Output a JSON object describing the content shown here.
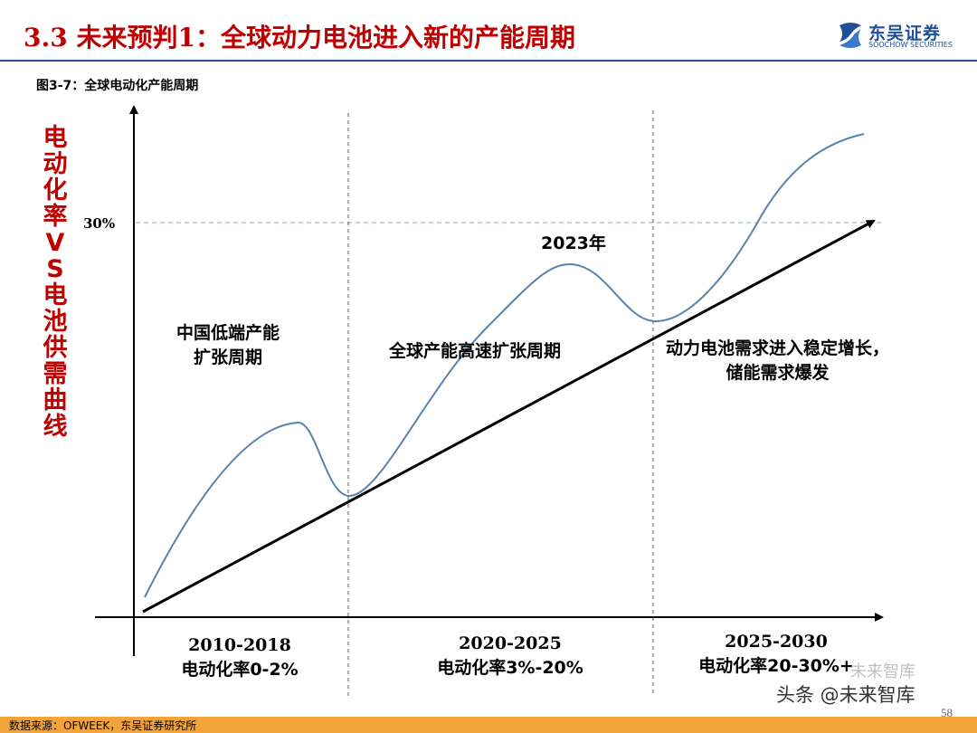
{
  "header": {
    "title": "3.3 未来预判1：全球动力电池进入新的产能周期",
    "logo_name": "东吴证券",
    "logo_sub": "SOOCHOW SECURITIES"
  },
  "figure": {
    "caption": "图3-7：全球电动化产能周期",
    "y_title": "电动化率VS电池供需曲线",
    "y_tick": "30%",
    "peak_label": "2023年",
    "phases": [
      {
        "label_lines": [
          "中国低端产能",
          "扩张周期"
        ],
        "range": "2010-2018",
        "rate": "电动化率0-2%"
      },
      {
        "label_lines": [
          "全球产能高速扩张周期"
        ],
        "range": "2020-2025",
        "rate": "电动化率3%-20%"
      },
      {
        "label_lines": [
          "动力电池需求进入稳定增长，",
          "储能需求爆发"
        ],
        "range": "2025-2030",
        "rate": "电动化率20-30%+"
      }
    ]
  },
  "colors": {
    "title": "#c00000",
    "curve": "#5b82ad",
    "brand": "#1f4e9a",
    "footer": "#f2a33a"
  },
  "footer": {
    "source": "数据来源：OFWEEK，东吴证券研究所",
    "page": "58"
  },
  "watermark": {
    "text": "头条 @未来智库",
    "text2": "未来智库"
  }
}
